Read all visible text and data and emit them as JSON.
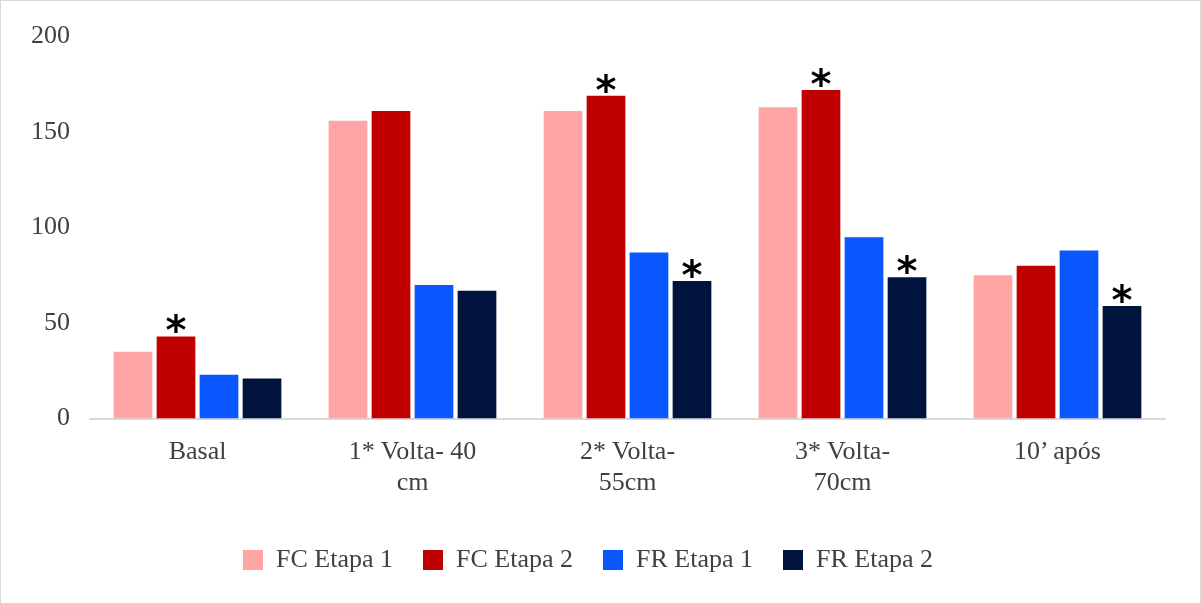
{
  "chart_data": {
    "type": "bar",
    "categories": [
      "Basal",
      "1* Volta- 40 cm",
      "2* Volta-55cm",
      "3* Volta-70cm",
      "10’ após"
    ],
    "series": [
      {
        "name": "FC Etapa 1",
        "color": "#ffa5a5",
        "values": [
          35,
          156,
          161,
          163,
          75
        ]
      },
      {
        "name": "FC Etapa 2",
        "color": "#c00000",
        "values": [
          43,
          161,
          169,
          172,
          80
        ]
      },
      {
        "name": "FR Etapa 1",
        "color": "#0a56ff",
        "values": [
          23,
          70,
          87,
          95,
          88
        ]
      },
      {
        "name": "FR Etapa 2",
        "color": "#00133c",
        "values": [
          21,
          67,
          72,
          74,
          59
        ]
      }
    ],
    "ylim": [
      0,
      200
    ],
    "yticks": [
      0,
      50,
      100,
      150,
      200
    ],
    "grid": false,
    "legend": "bottom",
    "annotations": [
      {
        "text": "*",
        "x": "Basal",
        "y": 43
      },
      {
        "text": "*",
        "x": "2* Volta-55cm",
        "y": 169
      },
      {
        "text": "*",
        "x": "2* Volta-55cm",
        "y": 72
      },
      {
        "text": "*",
        "x": "3* Volta-70cm",
        "y": 172
      },
      {
        "text": "*",
        "x": "3* Volta-70cm",
        "y": 74
      },
      {
        "text": "*",
        "x": "10’ após",
        "y": 59
      }
    ]
  }
}
